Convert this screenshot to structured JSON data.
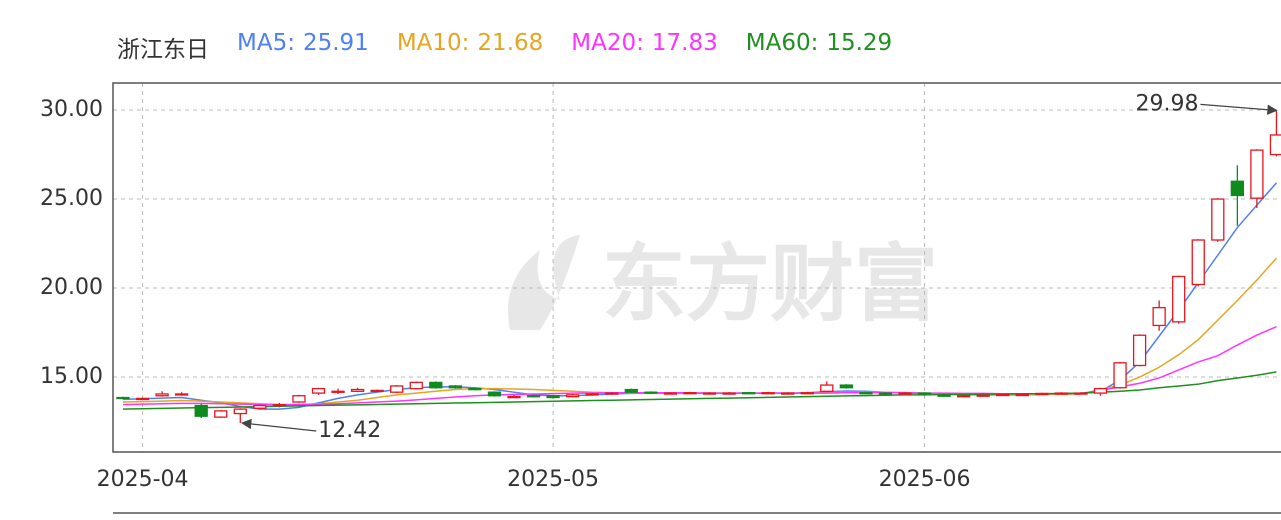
{
  "chart_data": {
    "type": "candlestick",
    "title": "浙江东日",
    "watermark": "东方财富",
    "categories": [
      null,
      "2025-04",
      null,
      null,
      null,
      null,
      null,
      null,
      null,
      null,
      null,
      null,
      null,
      null,
      null,
      null,
      null,
      null,
      null,
      null,
      null,
      null,
      "2025-05",
      null,
      null,
      null,
      null,
      null,
      null,
      null,
      null,
      null,
      null,
      null,
      null,
      null,
      null,
      null,
      null,
      null,
      null,
      "2025-06",
      null,
      null,
      null,
      null,
      null,
      null,
      null,
      null,
      null,
      null,
      null,
      null,
      null,
      null,
      null,
      null,
      null,
      null
    ],
    "open": [
      13.85,
      13.75,
      13.95,
      14.05,
      13.4,
      12.75,
      12.95,
      13.25,
      13.4,
      13.6,
      14.1,
      14.2,
      14.2,
      14.25,
      14.15,
      14.35,
      14.7,
      14.5,
      14.35,
      14.15,
      13.9,
      13.95,
      13.95,
      13.9,
      14.0,
      14.05,
      14.3,
      14.15,
      14.1,
      14.1,
      14.08,
      14.1,
      14.12,
      14.1,
      14.1,
      14.1,
      14.2,
      14.55,
      14.12,
      14.1,
      14.08,
      14.1,
      13.98,
      13.95,
      13.95,
      14.0,
      14.02,
      14.05,
      14.08,
      14.1,
      14.1,
      14.4,
      15.65,
      17.9,
      18.1,
      20.2,
      22.7,
      26.0,
      25.05,
      27.5
    ],
    "close": [
      13.8,
      13.8,
      14.05,
      14.05,
      12.8,
      13.1,
      13.2,
      13.4,
      13.45,
      13.95,
      14.35,
      14.2,
      14.3,
      14.25,
      14.5,
      14.7,
      14.4,
      14.4,
      14.3,
      13.95,
      13.9,
      13.9,
      13.85,
      14.0,
      14.05,
      14.1,
      14.15,
      14.1,
      14.1,
      14.12,
      14.1,
      14.1,
      14.1,
      14.12,
      14.1,
      14.12,
      14.55,
      14.4,
      14.1,
      14.08,
      14.1,
      14.05,
      13.95,
      13.95,
      13.98,
      14.02,
      14.02,
      14.08,
      14.1,
      14.1,
      14.35,
      15.8,
      17.35,
      18.9,
      20.65,
      22.7,
      25.0,
      25.2,
      27.75,
      28.6
    ],
    "high": [
      13.9,
      13.85,
      14.2,
      14.15,
      13.5,
      13.15,
      13.25,
      13.45,
      13.55,
      14.0,
      14.4,
      14.35,
      14.4,
      14.3,
      14.55,
      14.75,
      14.75,
      14.55,
      14.4,
      14.2,
      14.0,
      14.0,
      14.0,
      14.05,
      14.1,
      14.15,
      14.35,
      14.2,
      14.15,
      14.17,
      14.15,
      14.15,
      14.17,
      14.17,
      14.15,
      14.17,
      14.75,
      14.6,
      14.17,
      14.15,
      14.15,
      14.15,
      14.02,
      14.0,
      14.03,
      14.07,
      14.07,
      14.12,
      14.15,
      14.15,
      14.4,
      15.85,
      17.4,
      19.3,
      20.7,
      22.75,
      25.05,
      26.9,
      27.8,
      29.98
    ],
    "low": [
      13.75,
      13.7,
      13.9,
      13.95,
      12.7,
      12.7,
      12.42,
      13.2,
      13.3,
      13.55,
      14.0,
      14.05,
      14.15,
      14.2,
      14.1,
      14.3,
      14.35,
      14.35,
      14.25,
      13.9,
      13.85,
      13.85,
      13.8,
      13.85,
      13.95,
      14.0,
      14.1,
      14.05,
      14.05,
      14.05,
      14.05,
      14.05,
      14.05,
      14.05,
      14.05,
      14.05,
      14.15,
      14.35,
      14.05,
      14.03,
      14.03,
      14.0,
      13.9,
      13.9,
      13.92,
      13.97,
      13.97,
      14.0,
      14.03,
      14.05,
      13.95,
      14.35,
      15.6,
      17.6,
      18.0,
      20.1,
      22.6,
      23.5,
      24.5,
      27.4
    ],
    "up_color": "#e8141e",
    "down_color": "#0f8a1f",
    "series": [
      {
        "name": "MA5:",
        "color": "#4e7ff5",
        "values": [
          13.75,
          13.78,
          13.82,
          13.85,
          13.7,
          13.55,
          13.35,
          13.2,
          13.2,
          13.3,
          13.55,
          13.8,
          14.0,
          14.15,
          14.3,
          14.4,
          14.45,
          14.45,
          14.4,
          14.3,
          14.15,
          14.0,
          13.95,
          13.95,
          14.0,
          14.05,
          14.08,
          14.1,
          14.1,
          14.1,
          14.1,
          14.1,
          14.1,
          14.1,
          14.1,
          14.12,
          14.18,
          14.22,
          14.2,
          14.15,
          14.1,
          14.08,
          14.05,
          14.02,
          14.0,
          14.0,
          14.0,
          14.02,
          14.05,
          14.08,
          14.2,
          14.83,
          15.84,
          17.3,
          18.76,
          20.3,
          21.85,
          23.4,
          24.66,
          25.91
        ]
      },
      {
        "name": "MA10:",
        "color": "#e6a520",
        "values": [
          13.6,
          13.62,
          13.65,
          13.68,
          13.65,
          13.6,
          13.55,
          13.5,
          13.45,
          13.45,
          13.5,
          13.6,
          13.7,
          13.85,
          14.0,
          14.1,
          14.2,
          14.3,
          14.35,
          14.35,
          14.33,
          14.3,
          14.25,
          14.2,
          14.15,
          14.12,
          14.1,
          14.08,
          14.08,
          14.08,
          14.1,
          14.1,
          14.1,
          14.1,
          14.1,
          14.1,
          14.12,
          14.15,
          14.15,
          14.15,
          14.13,
          14.1,
          14.08,
          14.05,
          14.03,
          14.02,
          14.02,
          14.02,
          14.03,
          14.05,
          14.3,
          14.55,
          15.0,
          15.55,
          16.25,
          17.1,
          18.2,
          19.3,
          20.45,
          21.68
        ]
      },
      {
        "name": "MA20:",
        "color": "#ff33ff",
        "values": [
          13.45,
          13.48,
          13.5,
          13.52,
          13.52,
          13.5,
          13.48,
          13.45,
          13.45,
          13.45,
          13.47,
          13.5,
          13.55,
          13.6,
          13.65,
          13.72,
          13.8,
          13.88,
          13.95,
          14.0,
          14.02,
          14.05,
          14.07,
          14.1,
          14.1,
          14.12,
          14.12,
          14.12,
          14.12,
          14.12,
          14.1,
          14.1,
          14.1,
          14.1,
          14.1,
          14.1,
          14.1,
          14.12,
          14.12,
          14.12,
          14.12,
          14.1,
          14.1,
          14.08,
          14.08,
          14.06,
          14.06,
          14.06,
          14.06,
          14.08,
          14.25,
          14.45,
          14.65,
          14.95,
          15.4,
          15.85,
          16.2,
          16.8,
          17.36,
          17.83
        ]
      },
      {
        "name": "MA60:",
        "color": "#1f8f1f",
        "values": [
          13.2,
          13.22,
          13.24,
          13.26,
          13.28,
          13.3,
          13.32,
          13.34,
          13.36,
          13.38,
          13.4,
          13.42,
          13.44,
          13.46,
          13.48,
          13.5,
          13.52,
          13.54,
          13.56,
          13.58,
          13.6,
          13.62,
          13.64,
          13.66,
          13.68,
          13.7,
          13.72,
          13.74,
          13.76,
          13.78,
          13.8,
          13.82,
          13.84,
          13.86,
          13.88,
          13.9,
          13.92,
          13.94,
          13.96,
          13.98,
          14.0,
          14.0,
          14.02,
          14.02,
          14.04,
          14.04,
          14.06,
          14.06,
          14.08,
          14.1,
          14.15,
          14.2,
          14.27,
          14.4,
          14.5,
          14.6,
          14.8,
          14.95,
          15.1,
          15.29
        ]
      }
    ],
    "ylim": [
      10.79,
      31.52
    ],
    "yticks": [
      {
        "value": 15,
        "label": "15.00"
      },
      {
        "value": 20,
        "label": "20.00"
      },
      {
        "value": 25,
        "label": "25.00"
      },
      {
        "value": 30,
        "label": "30.00"
      }
    ],
    "grid": true
  }
}
